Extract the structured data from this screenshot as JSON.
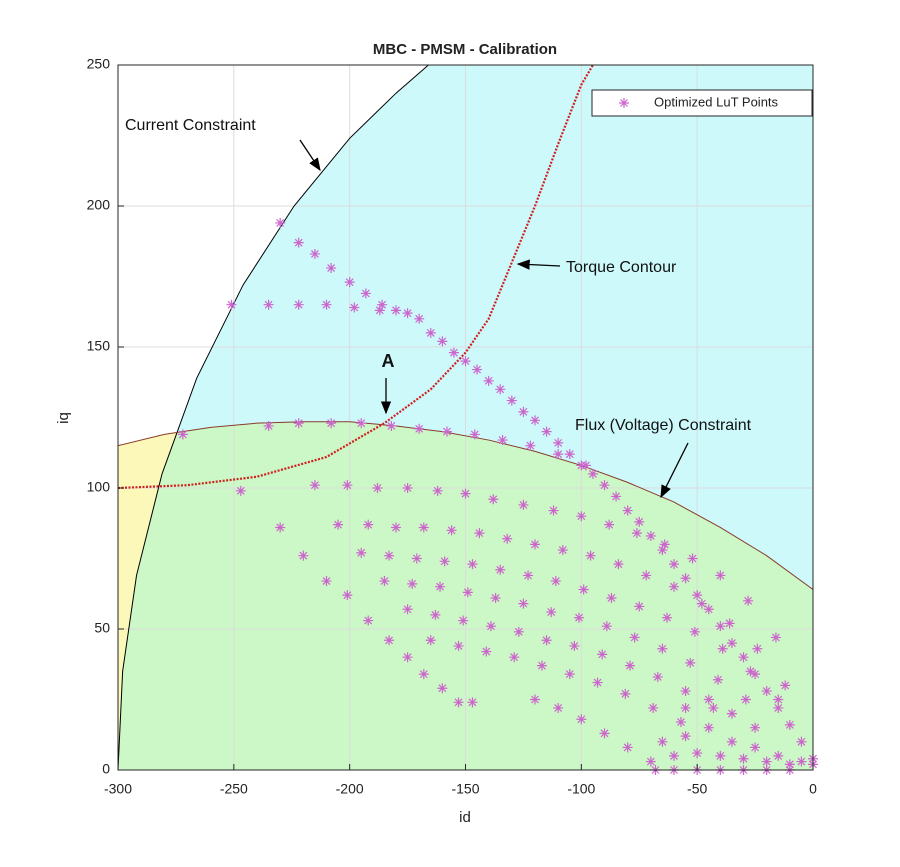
{
  "chart_data": {
    "type": "scatter",
    "title": "MBC - PMSM - Calibration",
    "x_label": "id",
    "y_label": "iq",
    "xlim": [
      -300,
      0
    ],
    "ylim": [
      0,
      250
    ],
    "xticks": [
      -300,
      -250,
      -200,
      -150,
      -100,
      -50,
      0
    ],
    "yticks": [
      0,
      50,
      100,
      150,
      200,
      250
    ],
    "grid": true,
    "legend": "northeast",
    "intersection_color": "#ccf7c6",
    "curves": [
      {
        "label": "Current Constraint",
        "color": "#000000",
        "fill": "#cdf9fb",
        "dash": false,
        "x": [
          -300,
          -298,
          -292,
          -281,
          -266,
          -246,
          -224,
          -200,
          -180,
          -166
        ],
        "y": [
          0,
          35,
          69,
          105,
          139,
          172,
          200,
          224,
          240,
          250
        ]
      },
      {
        "label": "Flux (Voltage) Constraint",
        "color": "#8b3a2a",
        "fill": "#fbf8b9",
        "dash": false,
        "x": [
          -300,
          -280,
          -260,
          -240,
          -220,
          -200,
          -180,
          -160,
          -140,
          -120,
          -100,
          -80,
          -60,
          -40,
          -20,
          0
        ],
        "y": [
          115,
          119,
          121.5,
          123,
          123.5,
          123.5,
          122,
          120,
          117,
          113,
          108,
          102,
          95,
          86,
          76,
          64
        ]
      },
      {
        "label": "Torque Contour",
        "color": "#d02020",
        "dash": true,
        "x": [
          -300,
          -270,
          -240,
          -210,
          -185,
          -165,
          -150,
          -140,
          -130,
          -120,
          -110,
          -100,
          -95
        ],
        "y": [
          100,
          101,
          104,
          111,
          123,
          135,
          148,
          160,
          180,
          200,
          222,
          243,
          250
        ]
      }
    ],
    "annotations": [
      {
        "text": "A"
      }
    ],
    "series": [
      {
        "name": "Optimized LuT Points",
        "color": "#cc66cc",
        "x": [
          -230,
          -222,
          -215,
          -208,
          -200,
          -193,
          -186,
          -180,
          -175,
          -170,
          -165,
          -160,
          -155,
          -150,
          -145,
          -140,
          -135,
          -130,
          -125,
          -120,
          -115,
          -110,
          -105,
          -100,
          -95,
          -90,
          -85,
          -80,
          -75,
          -70,
          -65,
          -60,
          -55,
          -50,
          -45,
          -40,
          -35,
          -30,
          -25,
          -20,
          -15,
          -10,
          -5,
          0,
          -251,
          -235,
          -222,
          -210,
          -198,
          -187,
          -272,
          -235,
          -222,
          -208,
          -195,
          -182,
          -170,
          -158,
          -146,
          -134,
          -122,
          -110,
          -98,
          -215,
          -201,
          -188,
          -175,
          -162,
          -150,
          -138,
          -125,
          -112,
          -100,
          -88,
          -76,
          -64,
          -52,
          -40,
          -28,
          -16,
          -205,
          -192,
          -180,
          -168,
          -156,
          -144,
          -132,
          -120,
          -108,
          -96,
          -84,
          -72,
          -60,
          -48,
          -36,
          -24,
          -12,
          -195,
          -183,
          -171,
          -159,
          -147,
          -135,
          -123,
          -111,
          -99,
          -87,
          -75,
          -63,
          -51,
          -39,
          -27,
          -15,
          -185,
          -173,
          -161,
          -149,
          -137,
          -125,
          -113,
          -101,
          -89,
          -77,
          -65,
          -53,
          -41,
          -29,
          -175,
          -163,
          -151,
          -139,
          -127,
          -115,
          -103,
          -91,
          -79,
          -67,
          -55,
          -43,
          -165,
          -153,
          -141,
          -129,
          -117,
          -105,
          -93,
          -81,
          -69,
          -57,
          -120,
          -110,
          -100,
          -90,
          -80,
          -70,
          -68,
          -60,
          -50,
          -40,
          -30,
          -20,
          -10,
          -247,
          -230,
          -220,
          -210,
          -201,
          -192,
          -183,
          -175,
          -168,
          -160,
          -153,
          -147,
          -65,
          -55,
          -45,
          -35,
          -25,
          -15,
          -60,
          -50,
          -40,
          -30,
          -20,
          -10,
          -55,
          -45,
          -35,
          -25,
          -5,
          0
        ],
        "y": [
          194,
          187,
          183,
          178,
          173,
          169,
          165,
          163,
          162,
          160,
          155,
          152,
          148,
          145,
          142,
          138,
          135,
          131,
          127,
          124,
          120,
          116,
          112,
          108,
          105,
          101,
          97,
          92,
          88,
          83,
          78,
          73,
          68,
          62,
          57,
          51,
          45,
          40,
          34,
          28,
          22,
          16,
          10,
          4,
          165,
          165,
          165,
          165,
          164,
          163,
          119,
          122,
          123,
          123,
          123,
          122,
          121,
          120,
          119,
          117,
          115,
          112,
          108,
          101,
          101,
          100,
          100,
          99,
          98,
          96,
          94,
          92,
          90,
          87,
          84,
          80,
          75,
          69,
          60,
          47,
          87,
          87,
          86,
          86,
          85,
          84,
          82,
          80,
          78,
          76,
          73,
          69,
          65,
          59,
          52,
          43,
          30,
          77,
          76,
          75,
          74,
          73,
          71,
          69,
          67,
          64,
          61,
          58,
          54,
          49,
          43,
          35,
          25,
          67,
          66,
          65,
          63,
          61,
          59,
          56,
          54,
          51,
          47,
          43,
          38,
          32,
          25,
          57,
          55,
          53,
          51,
          49,
          46,
          44,
          41,
          37,
          33,
          28,
          22,
          46,
          44,
          42,
          40,
          37,
          34,
          31,
          27,
          22,
          17,
          25,
          22,
          18,
          13,
          8,
          3,
          0,
          0,
          0,
          0,
          0,
          0,
          0,
          99,
          86,
          76,
          67,
          62,
          53,
          46,
          40,
          34,
          29,
          24,
          24,
          10,
          12,
          15,
          10,
          8,
          5,
          5,
          6,
          5,
          4,
          3,
          2,
          22,
          25,
          20,
          15,
          3,
          2
        ]
      }
    ]
  }
}
